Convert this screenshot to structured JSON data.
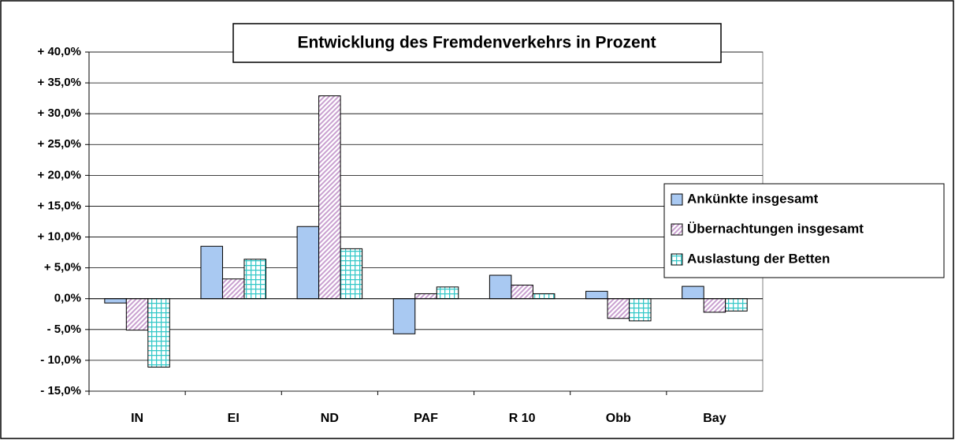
{
  "chart_data": {
    "type": "bar",
    "title": "Entwicklung des Fremdenverkehrs in Prozent",
    "categories": [
      "IN",
      "EI",
      "ND",
      "PAF",
      "R 10",
      "Obb",
      "Bay"
    ],
    "series": [
      {
        "name": "Ankünkte insgesamt",
        "color": "#a9c9f2",
        "pattern": "solid",
        "values": [
          -0.7,
          8.5,
          11.7,
          -5.7,
          3.8,
          1.2,
          2.0
        ]
      },
      {
        "name": "Übernachtungen insgesamt",
        "color": "#c9a0d0",
        "pattern": "diagonal",
        "values": [
          -5.1,
          3.2,
          32.9,
          0.8,
          2.2,
          -3.2,
          -2.2
        ]
      },
      {
        "name": "Auslastung der Betten",
        "color": "#33c8c8",
        "pattern": "grid",
        "values": [
          -11.1,
          6.4,
          8.1,
          1.9,
          0.8,
          -3.6,
          -2.0
        ]
      }
    ],
    "ylim": [
      -15,
      40
    ],
    "yticks": [
      {
        "value": -15,
        "label": "- 15,0%"
      },
      {
        "value": -10,
        "label": "- 10,0%"
      },
      {
        "value": -5,
        "label": "- 5,0%"
      },
      {
        "value": 0,
        "label": "0,0%"
      },
      {
        "value": 5,
        "label": "+ 5,0%"
      },
      {
        "value": 10,
        "label": "+ 10,0%"
      },
      {
        "value": 15,
        "label": "+ 15,0%"
      },
      {
        "value": 20,
        "label": "+ 20,0%"
      },
      {
        "value": 25,
        "label": "+ 25,0%"
      },
      {
        "value": 30,
        "label": "+ 30,0%"
      },
      {
        "value": 35,
        "label": "+ 35,0%"
      },
      {
        "value": 40,
        "label": "+ 40,0%"
      }
    ],
    "grid": true,
    "legend": "right"
  }
}
